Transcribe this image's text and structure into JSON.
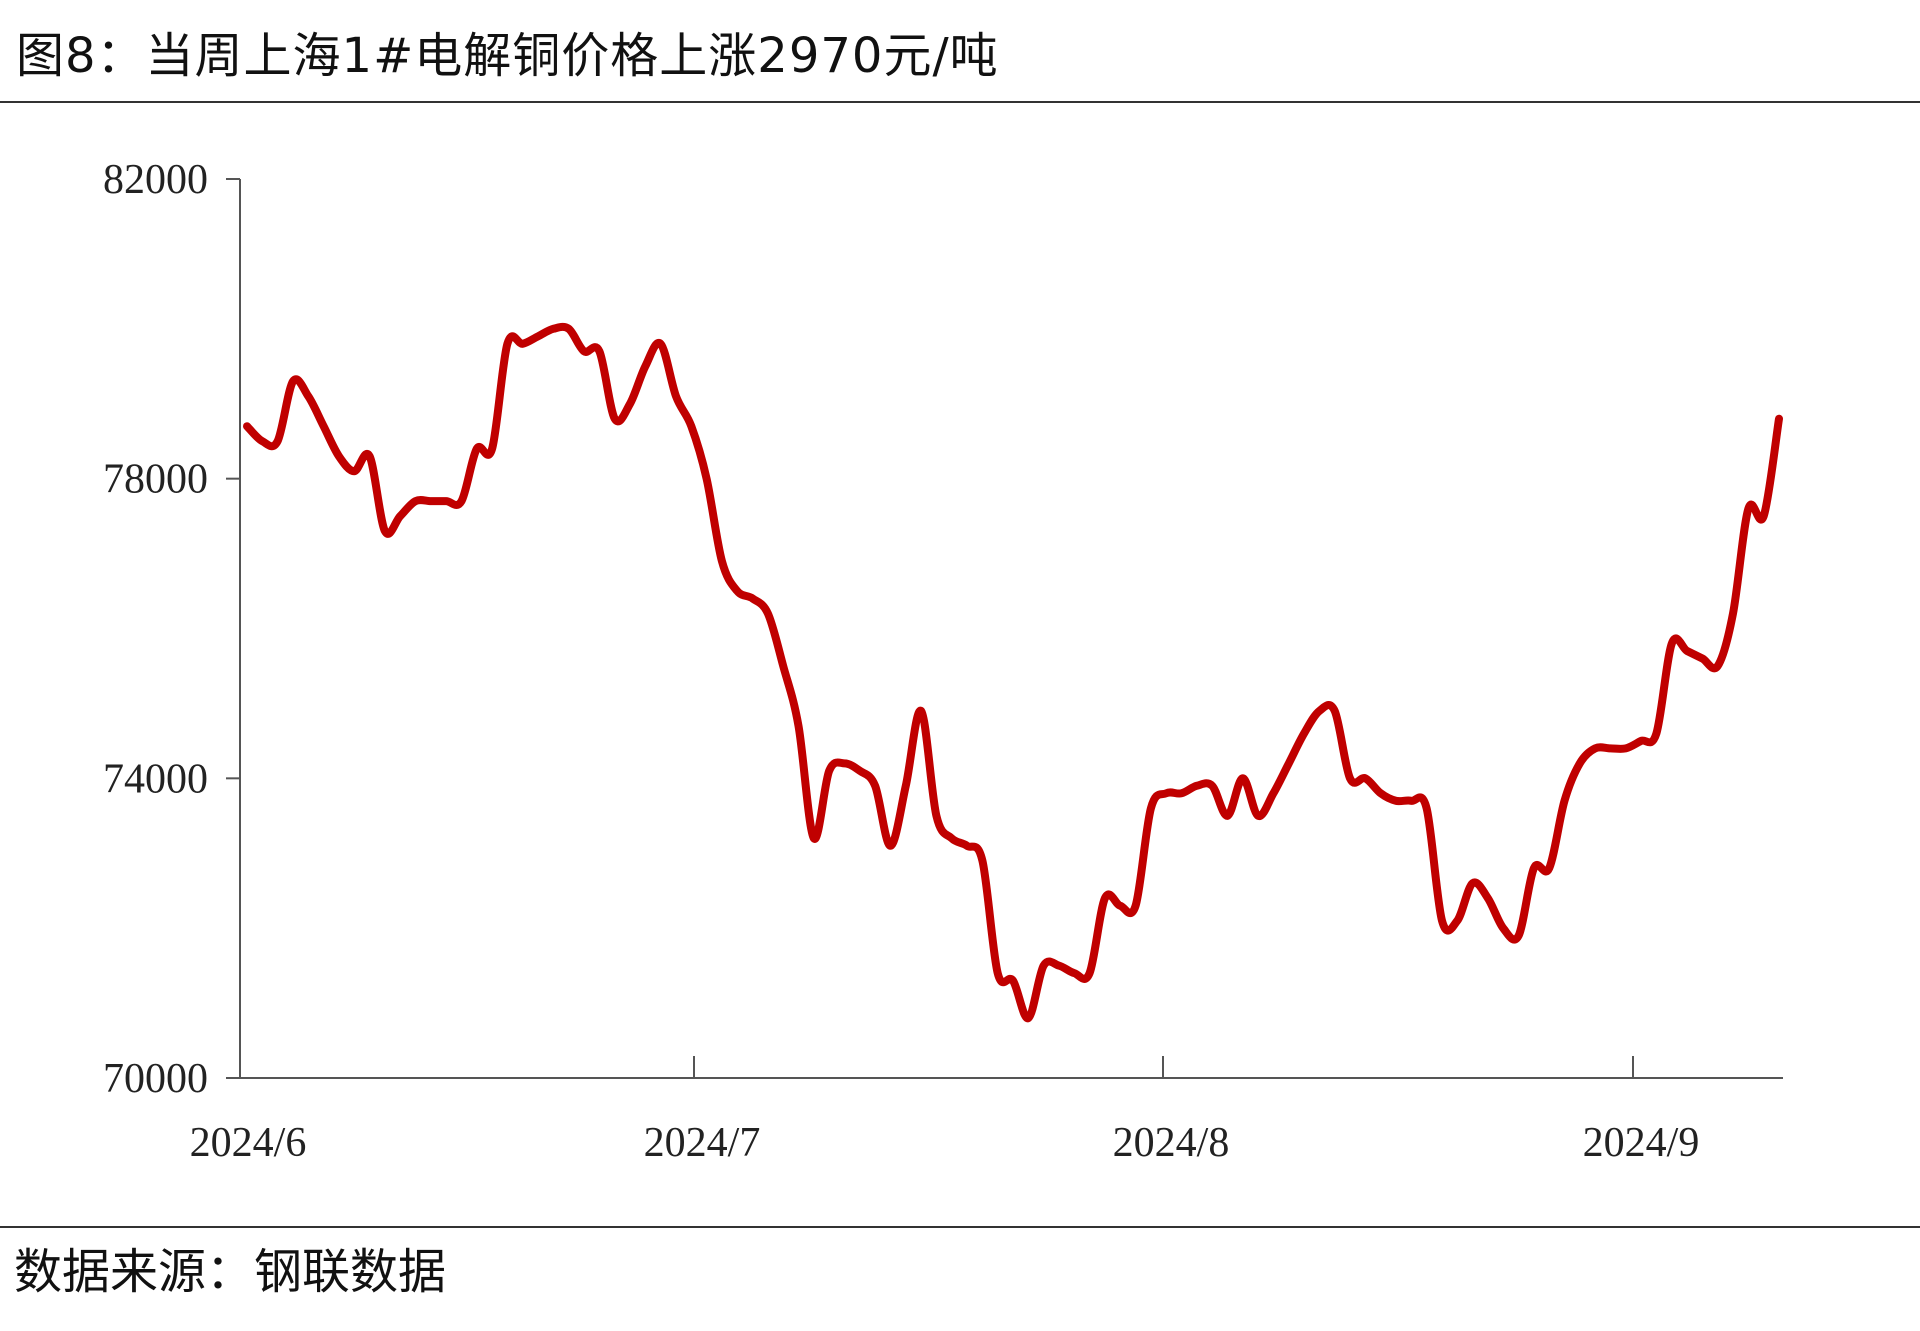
{
  "title": "图8：当周上海1#电解铜价格上涨2970元/吨",
  "source": "数据来源：钢联数据",
  "colors": {
    "line": "#C00000",
    "axis": "#555555",
    "rule": "#333333"
  },
  "chart_data": {
    "type": "line",
    "title": "图8：当周上海1#电解铜价格上涨2970元/吨",
    "xlabel": "",
    "ylabel": "",
    "ylim": [
      70000,
      82000
    ],
    "yticks": [
      "70000",
      "74000",
      "78000",
      "82000"
    ],
    "xticks": [
      "2024/6",
      "2024/7",
      "2024/8",
      "2024/9"
    ],
    "grid": false,
    "legend": "none",
    "series": [
      {
        "values": [
          78700,
          78500,
          78500,
          79300,
          79100,
          78700,
          78300,
          78100,
          78300,
          77300,
          77500,
          77700,
          77700,
          77700,
          77700,
          78400,
          78400,
          79800,
          79800,
          79900,
          80000,
          80000,
          79700,
          79700,
          78800,
          79000,
          79500,
          79800,
          79100,
          78700,
          78000,
          76900,
          76500,
          76400,
          76200,
          75500,
          74700,
          73200,
          74100,
          74200,
          74100,
          73900,
          73100,
          73900,
          74900,
          73500,
          73200,
          73100,
          72900,
          71400,
          71300,
          70800,
          71500,
          71500,
          71400,
          71400,
          72400,
          72300,
          72300,
          73600,
          73800,
          73800,
          73900,
          73900,
          73500,
          74000,
          73500,
          73800,
          74200,
          74600,
          74900,
          74900,
          74000,
          74000,
          73800,
          73700,
          73700,
          73600,
          72100,
          72100,
          72600,
          72400,
          72000,
          71900,
          72800,
          72800,
          73700,
          74200,
          74400,
          74400,
          74400,
          74500,
          74600,
          75800,
          75700,
          75600,
          75500,
          76200,
          77600,
          77500,
          78800
        ]
      }
    ]
  }
}
